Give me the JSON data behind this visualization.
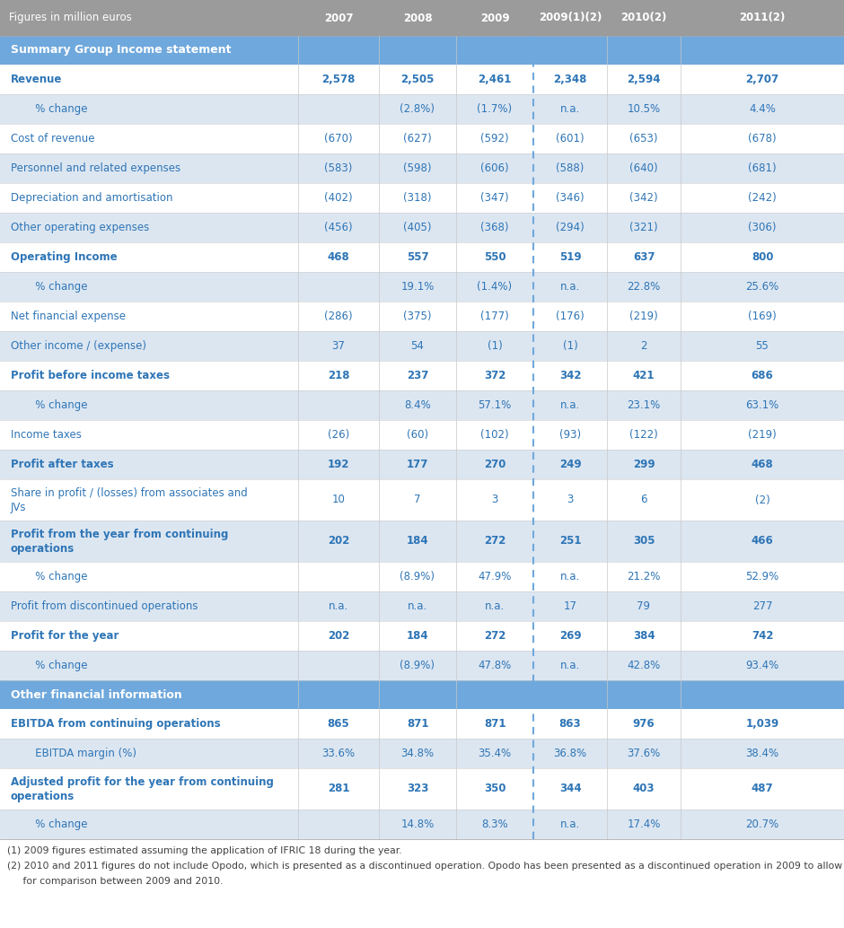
{
  "header_bg": "#9B9B9B",
  "header_text": "#FFFFFF",
  "section_bg": "#6FA8DC",
  "section_text": "#FFFFFF",
  "row_text": "#2E75B6",
  "row_light": "#DCE6F1",
  "row_white": "#FFFFFF",
  "footer_text": "#404040",
  "col_header": [
    "Figures in million euros",
    "2007",
    "2008",
    "2009",
    "2009(1)(2)",
    "2010(2)",
    "2011(2)"
  ],
  "rows": [
    {
      "label": "Revenue",
      "bold": true,
      "indent": false,
      "values": [
        "2,578",
        "2,505",
        "2,461",
        "2,348",
        "2,594",
        "2,707"
      ]
    },
    {
      "label": "   % change",
      "bold": false,
      "indent": true,
      "values": [
        "",
        "(2.8%)",
        "(1.7%)",
        "n.a.",
        "10.5%",
        "4.4%"
      ]
    },
    {
      "label": "Cost of revenue",
      "bold": false,
      "indent": false,
      "values": [
        "(670)",
        "(627)",
        "(592)",
        "(601)",
        "(653)",
        "(678)"
      ]
    },
    {
      "label": "Personnel and related expenses",
      "bold": false,
      "indent": false,
      "values": [
        "(583)",
        "(598)",
        "(606)",
        "(588)",
        "(640)",
        "(681)"
      ]
    },
    {
      "label": "Depreciation and amortisation",
      "bold": false,
      "indent": false,
      "values": [
        "(402)",
        "(318)",
        "(347)",
        "(346)",
        "(342)",
        "(242)"
      ]
    },
    {
      "label": "Other operating expenses",
      "bold": false,
      "indent": false,
      "values": [
        "(456)",
        "(405)",
        "(368)",
        "(294)",
        "(321)",
        "(306)"
      ]
    },
    {
      "label": "Operating Income",
      "bold": true,
      "indent": false,
      "values": [
        "468",
        "557",
        "550",
        "519",
        "637",
        "800"
      ]
    },
    {
      "label": "   % change",
      "bold": false,
      "indent": true,
      "values": [
        "",
        "19.1%",
        "(1.4%)",
        "n.a.",
        "22.8%",
        "25.6%"
      ]
    },
    {
      "label": "Net financial expense",
      "bold": false,
      "indent": false,
      "values": [
        "(286)",
        "(375)",
        "(177)",
        "(176)",
        "(219)",
        "(169)"
      ]
    },
    {
      "label": "Other income / (expense)",
      "bold": false,
      "indent": false,
      "values": [
        "37",
        "54",
        "(1)",
        "(1)",
        "2",
        "55"
      ]
    },
    {
      "label": "Profit before income taxes",
      "bold": true,
      "indent": false,
      "values": [
        "218",
        "237",
        "372",
        "342",
        "421",
        "686"
      ]
    },
    {
      "label": "   % change",
      "bold": false,
      "indent": true,
      "values": [
        "",
        "8.4%",
        "57.1%",
        "n.a.",
        "23.1%",
        "63.1%"
      ]
    },
    {
      "label": "Income taxes",
      "bold": false,
      "indent": false,
      "values": [
        "(26)",
        "(60)",
        "(102)",
        "(93)",
        "(122)",
        "(219)"
      ]
    },
    {
      "label": "Profit after taxes",
      "bold": true,
      "indent": false,
      "values": [
        "192",
        "177",
        "270",
        "249",
        "299",
        "468"
      ]
    },
    {
      "label": "Share in profit / (losses) from associates and\nJVs",
      "bold": false,
      "indent": false,
      "tall": true,
      "values": [
        "10",
        "7",
        "3",
        "3",
        "6",
        "(2)"
      ]
    },
    {
      "label": "Profit from the year from continuing\noperations",
      "bold": true,
      "indent": false,
      "tall": true,
      "values": [
        "202",
        "184",
        "272",
        "251",
        "305",
        "466"
      ]
    },
    {
      "label": "   % change",
      "bold": false,
      "indent": true,
      "values": [
        "",
        "(8.9%)",
        "47.9%",
        "n.a.",
        "21.2%",
        "52.9%"
      ]
    },
    {
      "label": "Profit from discontinued operations",
      "bold": false,
      "indent": false,
      "values": [
        "n.a.",
        "n.a.",
        "n.a.",
        "17",
        "79",
        "277"
      ]
    },
    {
      "label": "Profit for the year",
      "bold": true,
      "indent": false,
      "values": [
        "202",
        "184",
        "272",
        "269",
        "384",
        "742"
      ]
    },
    {
      "label": "   % change",
      "bold": false,
      "indent": true,
      "values": [
        "",
        "(8.9%)",
        "47.8%",
        "n.a.",
        "42.8%",
        "93.4%"
      ]
    }
  ],
  "rows2": [
    {
      "label": "EBITDA from continuing operations",
      "bold": true,
      "indent": false,
      "values": [
        "865",
        "871",
        "871",
        "863",
        "976",
        "1,039"
      ]
    },
    {
      "label": "   EBITDA margin (%)",
      "bold": false,
      "indent": true,
      "values": [
        "33.6%",
        "34.8%",
        "35.4%",
        "36.8%",
        "37.6%",
        "38.4%"
      ]
    },
    {
      "label": "Adjusted profit for the year from continuing\noperations",
      "bold": true,
      "indent": false,
      "tall": true,
      "values": [
        "281",
        "323",
        "350",
        "344",
        "403",
        "487"
      ]
    },
    {
      "label": "   % change",
      "bold": false,
      "indent": true,
      "values": [
        "",
        "14.8%",
        "8.3%",
        "n.a.",
        "17.4%",
        "20.7%"
      ]
    }
  ],
  "footer_lines": [
    "(1) 2009 figures estimated assuming the application of IFRIC 18 during the year.",
    "(2) 2010 and 2011 figures do not include Opodo, which is presented as a discontinued operation. Opodo has been presented as a discontinued operation in 2009 to allow",
    "     for comparison between 2009 and 2010."
  ]
}
